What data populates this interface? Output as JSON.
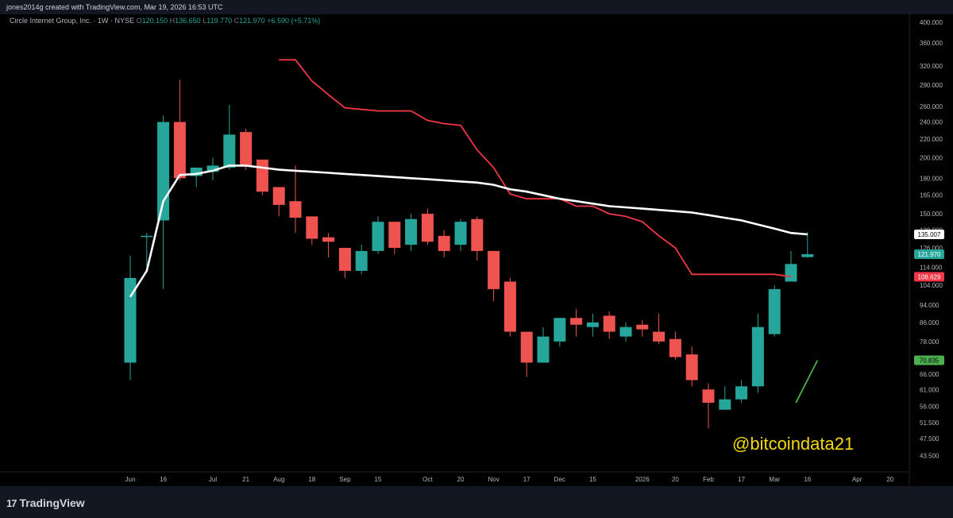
{
  "header": {
    "credit": "jones2014g created with TradingView.com, Mar 19, 2026 16:53 UTC"
  },
  "legend": {
    "symbol": "Circle Internet Group, Inc. · 1W · NYSE",
    "open_label": "O",
    "open": "120.150",
    "high_label": "H",
    "high": "136.650",
    "low_label": "L",
    "low": "119.770",
    "close_label": "C",
    "close": "121.970",
    "change": "+6.590 (+5.71%)"
  },
  "watermark": "@bitcoindata21",
  "footer": {
    "brand": "TradingView",
    "brand_mark": "17"
  },
  "colors": {
    "up": "#26a69a",
    "down": "#ef5350",
    "background": "#000000",
    "ma_line": "#ffffff",
    "red_line": "#f23645",
    "green_line": "#4caf50"
  },
  "chart_data": {
    "type": "candlestick",
    "scale": "log",
    "ylim": [
      42,
      400
    ],
    "y_ticks": [
      "400.000",
      "360.000",
      "320.000",
      "290.000",
      "260.000",
      "240.000",
      "220.000",
      "200.000",
      "180.000",
      "165.000",
      "150.000",
      "138.000",
      "126.000",
      "114.000",
      "104.000",
      "94.000",
      "86.000",
      "78.000",
      "70.000",
      "66.000",
      "61.000",
      "56.000",
      "51.500",
      "47.500",
      "43.500"
    ],
    "x_ticks": [
      {
        "label": "Jun",
        "bar": 0
      },
      {
        "label": "16",
        "bar": 2
      },
      {
        "label": "Jul",
        "bar": 5
      },
      {
        "label": "21",
        "bar": 7
      },
      {
        "label": "Aug",
        "bar": 9
      },
      {
        "label": "18",
        "bar": 11
      },
      {
        "label": "Sep",
        "bar": 13
      },
      {
        "label": "15",
        "bar": 15
      },
      {
        "label": "Oct",
        "bar": 18
      },
      {
        "label": "20",
        "bar": 20
      },
      {
        "label": "Nov",
        "bar": 22
      },
      {
        "label": "17",
        "bar": 24
      },
      {
        "label": "Dec",
        "bar": 26
      },
      {
        "label": "15",
        "bar": 28
      },
      {
        "label": "2026",
        "bar": 31
      },
      {
        "label": "20",
        "bar": 33
      },
      {
        "label": "Feb",
        "bar": 35
      },
      {
        "label": "17",
        "bar": 37
      },
      {
        "label": "Mar",
        "bar": 39
      },
      {
        "label": "16",
        "bar": 41
      },
      {
        "label": "Apr",
        "bar": 44
      },
      {
        "label": "20",
        "bar": 46
      }
    ],
    "candles": [
      {
        "o": 70,
        "h": 121,
        "l": 64,
        "c": 108
      },
      {
        "o": 134,
        "h": 136,
        "l": 114,
        "c": 134
      },
      {
        "o": 145,
        "h": 248,
        "l": 102,
        "c": 240
      },
      {
        "o": 240,
        "h": 298,
        "l": 178,
        "c": 180
      },
      {
        "o": 182,
        "h": 190,
        "l": 172,
        "c": 190
      },
      {
        "o": 186,
        "h": 200,
        "l": 178,
        "c": 192
      },
      {
        "o": 190,
        "h": 262,
        "l": 188,
        "c": 225
      },
      {
        "o": 228,
        "h": 232,
        "l": 188,
        "c": 192
      },
      {
        "o": 198,
        "h": 198,
        "l": 165,
        "c": 168
      },
      {
        "o": 172,
        "h": 172,
        "l": 148,
        "c": 157
      },
      {
        "o": 160,
        "h": 192,
        "l": 136,
        "c": 147
      },
      {
        "o": 148,
        "h": 148,
        "l": 128,
        "c": 132
      },
      {
        "o": 133,
        "h": 136,
        "l": 120,
        "c": 130
      },
      {
        "o": 126,
        "h": 126,
        "l": 108,
        "c": 112
      },
      {
        "o": 112,
        "h": 128,
        "l": 110,
        "c": 124
      },
      {
        "o": 124,
        "h": 148,
        "l": 122,
        "c": 144
      },
      {
        "o": 144,
        "h": 144,
        "l": 122,
        "c": 126
      },
      {
        "o": 128,
        "h": 150,
        "l": 124,
        "c": 146
      },
      {
        "o": 150,
        "h": 154,
        "l": 128,
        "c": 130
      },
      {
        "o": 134,
        "h": 138,
        "l": 120,
        "c": 124
      },
      {
        "o": 128,
        "h": 146,
        "l": 124,
        "c": 144
      },
      {
        "o": 146,
        "h": 148,
        "l": 118,
        "c": 124
      },
      {
        "o": 124,
        "h": 124,
        "l": 96,
        "c": 102
      },
      {
        "o": 106,
        "h": 108,
        "l": 80,
        "c": 82
      },
      {
        "o": 82,
        "h": 82,
        "l": 65,
        "c": 70
      },
      {
        "o": 70,
        "h": 84,
        "l": 70,
        "c": 80
      },
      {
        "o": 78,
        "h": 88,
        "l": 76,
        "c": 88
      },
      {
        "o": 88,
        "h": 92,
        "l": 80,
        "c": 85
      },
      {
        "o": 84,
        "h": 90,
        "l": 80,
        "c": 86
      },
      {
        "o": 89,
        "h": 91,
        "l": 79,
        "c": 82
      },
      {
        "o": 80,
        "h": 86,
        "l": 78,
        "c": 84
      },
      {
        "o": 85,
        "h": 87,
        "l": 80,
        "c": 83
      },
      {
        "o": 82,
        "h": 90,
        "l": 77,
        "c": 78
      },
      {
        "o": 79,
        "h": 82,
        "l": 71,
        "c": 72
      },
      {
        "o": 73,
        "h": 76,
        "l": 62,
        "c": 64
      },
      {
        "o": 61,
        "h": 63,
        "l": 50,
        "c": 57
      },
      {
        "o": 55,
        "h": 62,
        "l": 55,
        "c": 58
      },
      {
        "o": 58,
        "h": 64,
        "l": 57,
        "c": 62
      },
      {
        "o": 62,
        "h": 90,
        "l": 60,
        "c": 84
      },
      {
        "o": 81,
        "h": 104,
        "l": 80,
        "c": 102
      },
      {
        "o": 106,
        "h": 124,
        "l": 106,
        "c": 116
      },
      {
        "o": 120.15,
        "h": 136.65,
        "l": 119.77,
        "c": 121.97
      }
    ],
    "ma_line": {
      "start_bar": 0,
      "values": [
        98,
        112,
        160,
        183,
        184,
        187,
        192,
        192,
        190,
        188,
        187,
        186,
        185,
        184,
        183,
        182,
        181,
        180,
        179,
        178,
        177,
        176,
        174,
        170,
        168,
        165,
        162,
        160,
        158,
        156,
        155,
        154,
        153,
        152,
        151,
        149,
        147,
        145,
        142,
        139,
        136,
        135.007
      ]
    },
    "red_line": {
      "start_bar": 9,
      "values": [
        330,
        330,
        296,
        276,
        258,
        256,
        254,
        254,
        254,
        242,
        238,
        236,
        208,
        190,
        166,
        162,
        162,
        162,
        156,
        156,
        150,
        148,
        144,
        134,
        126,
        110,
        110,
        110,
        110,
        110,
        110,
        108.629
      ]
    },
    "green_line": {
      "x_start_bar": 40.3,
      "y_start": 57,
      "x_end_bar": 41.6,
      "y_end": 70.8
    },
    "price_tags": [
      {
        "label": "135.007",
        "value": 135.007,
        "bg": "#ffffff",
        "fg": "#000000"
      },
      {
        "label": "121.970",
        "value": 121.97,
        "bg": "#26a69a",
        "fg": "#ffffff"
      },
      {
        "label": "108.629",
        "value": 108.629,
        "bg": "#f23645",
        "fg": "#ffffff"
      },
      {
        "label": "70.835",
        "value": 70.835,
        "bg": "#4caf50",
        "fg": "#000000"
      }
    ]
  }
}
